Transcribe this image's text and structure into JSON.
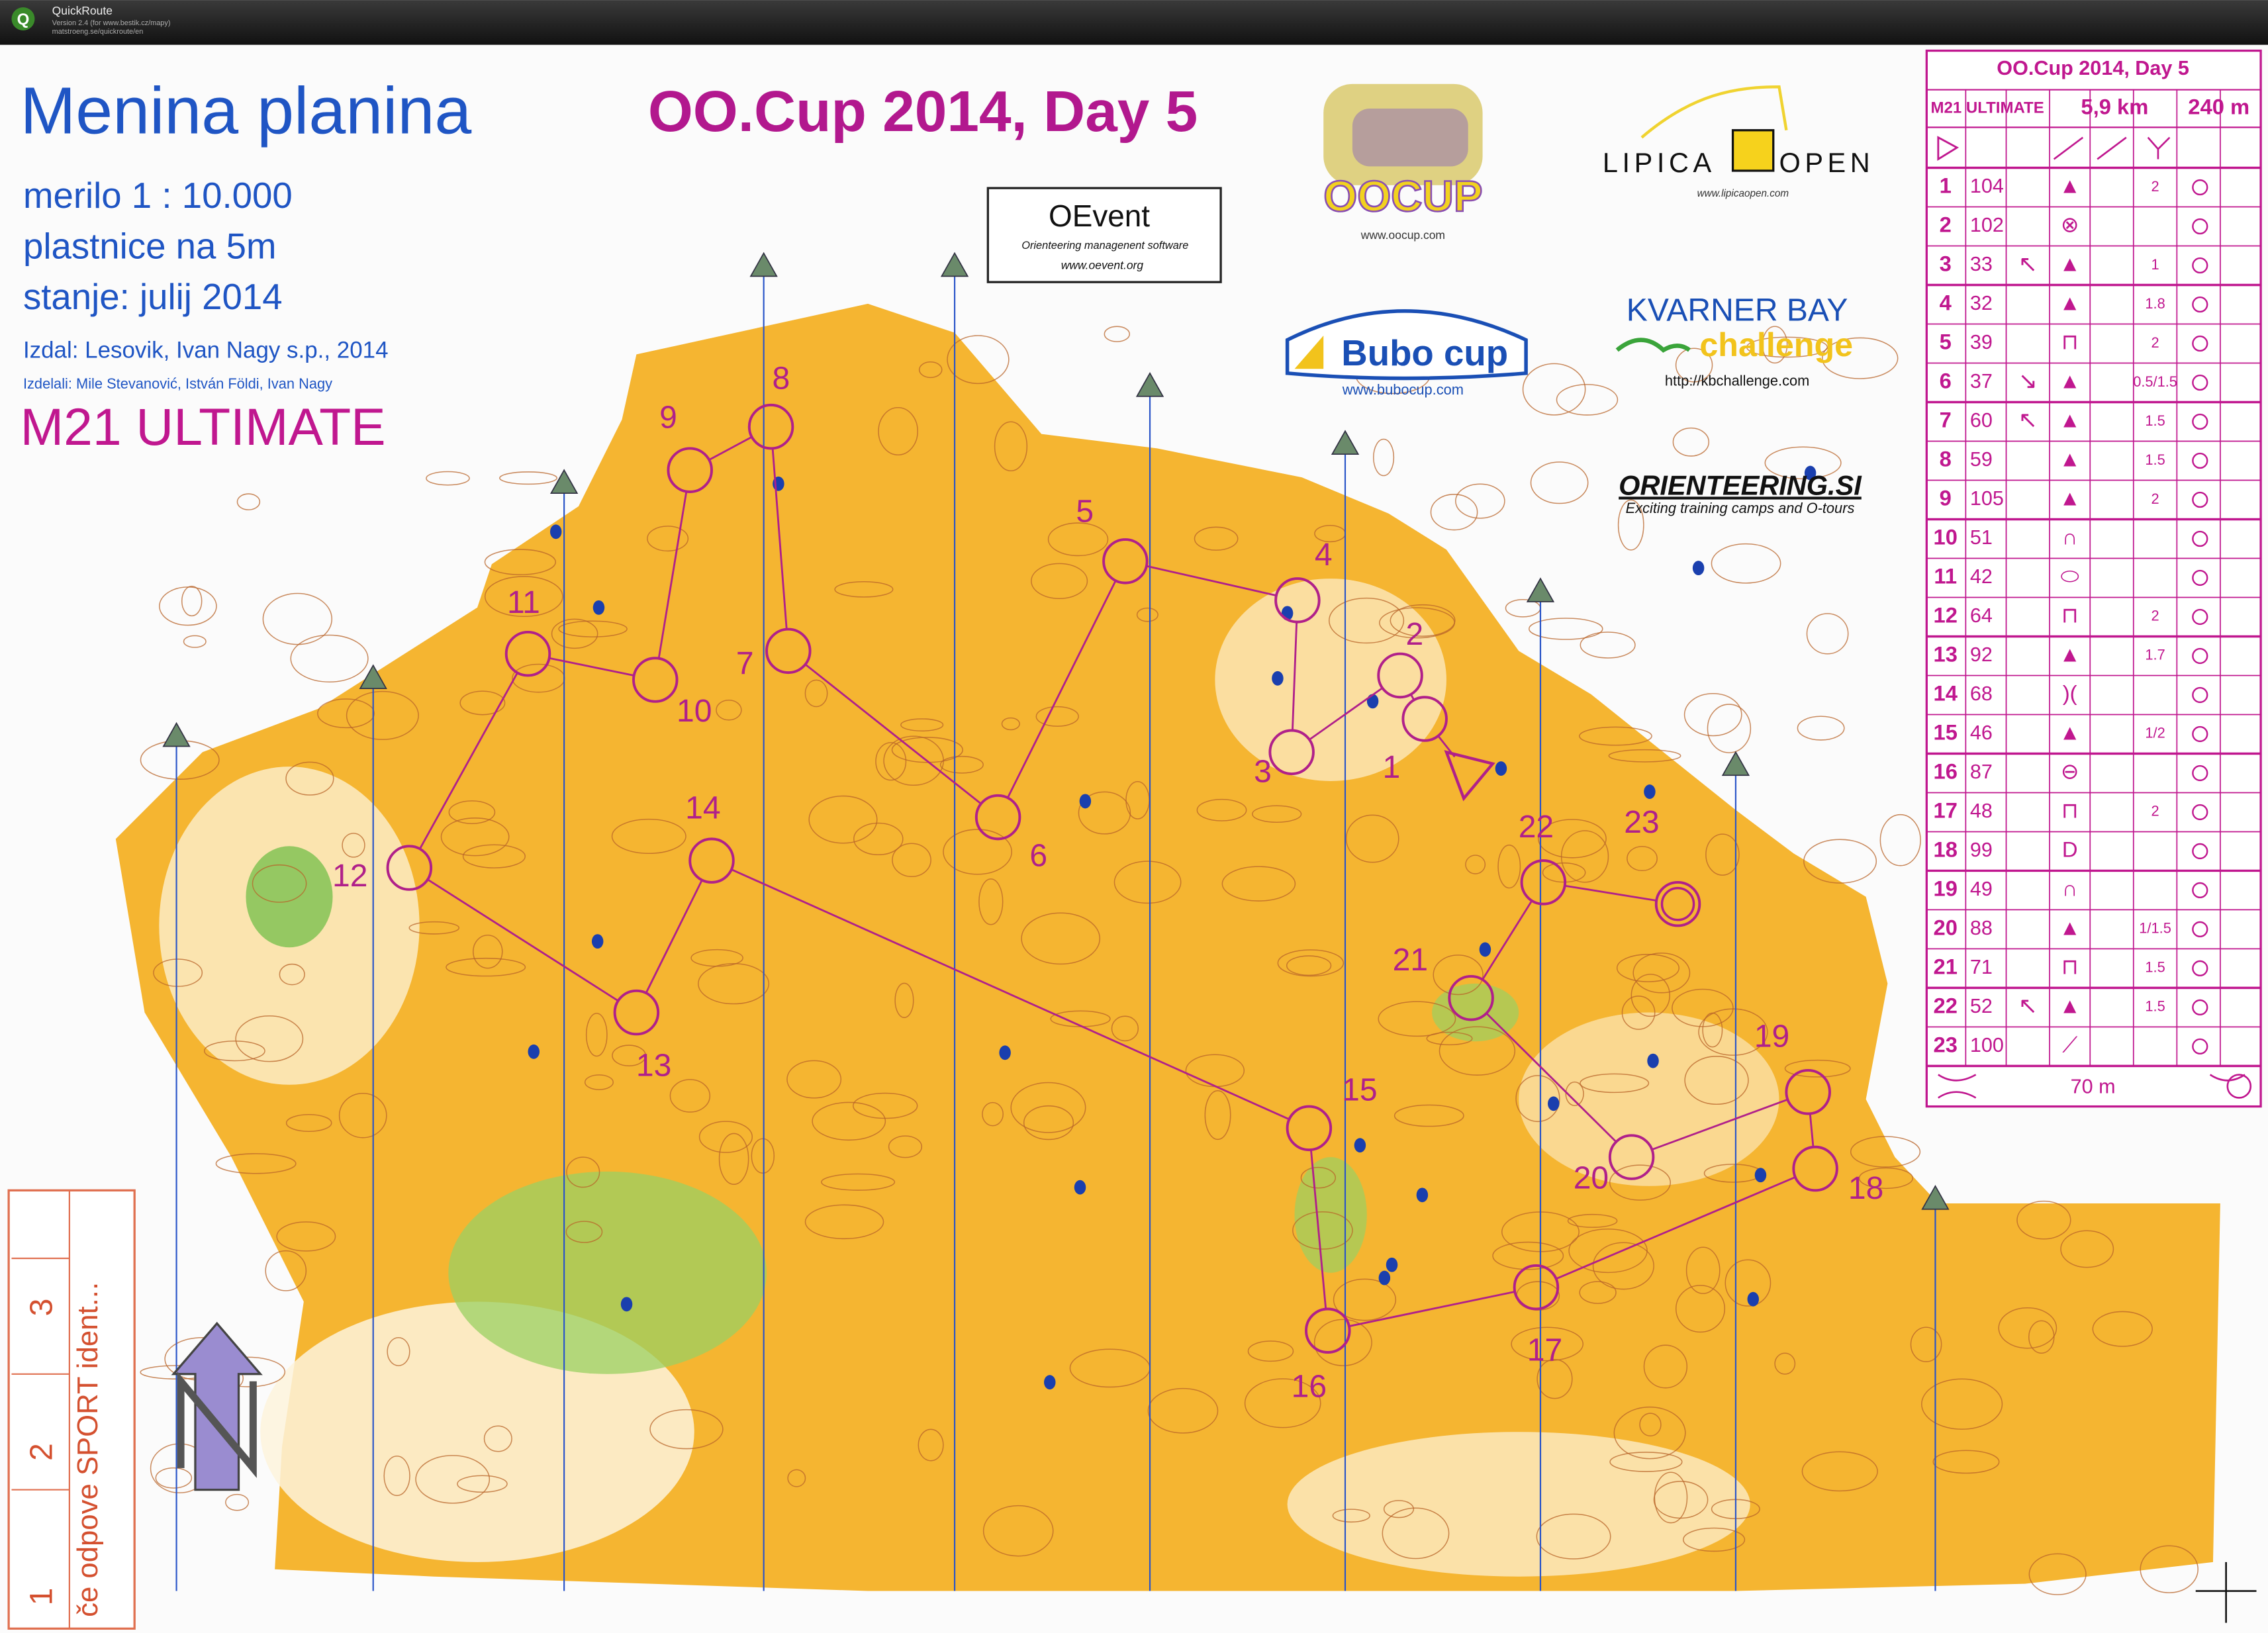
{
  "window": {
    "title": "QuickRoute",
    "version": "Version 2.4  (for www.bestik.cz/mapy)",
    "url": "matstroeng.se/quickroute/en"
  },
  "map": {
    "name": "Menina planina",
    "scale": "merilo 1 : 10.000",
    "contour_interval": "plastnice na 5m",
    "status": "stanje: julij 2014",
    "publisher": "Izdal: Lesovik, Ivan Nagy s.p., 2014",
    "authors": "Izdelali: Mile Stevanović, István Földi, Ivan Nagy",
    "course": "M21 ULTIMATE",
    "event": "OO.Cup 2014, Day 5",
    "controls": [
      1,
      2,
      3,
      4,
      5,
      6,
      7,
      8,
      9,
      10,
      11,
      12,
      13,
      14,
      15,
      16,
      17,
      18,
      19,
      20,
      21,
      22,
      23
    ]
  },
  "logos": {
    "oocup": {
      "name": "OOCUP",
      "url": "www.oocup.com"
    },
    "oevent": {
      "name": "OEvent",
      "tagline": "Orienteering managenent software",
      "url": "www.oevent.org"
    },
    "lipica": {
      "left": "LIPICA",
      "right": "OPEN",
      "url": "www.lipicaopen.com"
    },
    "bubo": {
      "name": "Bubo cup",
      "url": "www.bubocup.com"
    },
    "kvarner": {
      "name": "KVARNER BAY",
      "sub": "challenge",
      "url": "http://kbchallenge.com"
    },
    "orienteering_si": {
      "name": "ORIENTEERING.SI",
      "tagline": "Exciting training camps and O-tours"
    }
  },
  "description_sheet": {
    "event": "OO.Cup 2014, Day 5",
    "course": "M21 ULTIMATE",
    "length": "5,9 km",
    "climb": "240 m",
    "rows": [
      {
        "number": 1,
        "code": 104,
        "feature": "▲",
        "dimension": "2"
      },
      {
        "number": 2,
        "code": 102,
        "feature": "⊗"
      },
      {
        "number": 3,
        "code": 33,
        "direction": "↖",
        "feature": "▲",
        "dimension": "1"
      },
      {
        "number": 4,
        "code": 32,
        "feature": "▲",
        "dimension": "1.8"
      },
      {
        "number": 5,
        "code": 39,
        "feature": "⊓",
        "dimension": "2"
      },
      {
        "number": 6,
        "code": 37,
        "direction": "↘",
        "feature": "▲",
        "dimension": "0.5/1.5"
      },
      {
        "number": 7,
        "code": 60,
        "direction": "↖",
        "feature": "▲",
        "dimension": "1.5"
      },
      {
        "number": 8,
        "code": 59,
        "feature": "▲",
        "dimension": "1.5"
      },
      {
        "number": 9,
        "code": 105,
        "feature": "▲",
        "dimension": "2"
      },
      {
        "number": 10,
        "code": 51,
        "feature": "∩"
      },
      {
        "number": 11,
        "code": 42,
        "feature": "⬭"
      },
      {
        "number": 12,
        "code": 64,
        "feature": "⊓",
        "dimension": "2"
      },
      {
        "number": 13,
        "code": 92,
        "feature": "▲",
        "dimension": "1.7"
      },
      {
        "number": 14,
        "code": 68,
        "feature": ")("
      },
      {
        "number": 15,
        "code": 46,
        "feature": "▲",
        "dimension": "1/2"
      },
      {
        "number": 16,
        "code": 87,
        "feature": "⊖"
      },
      {
        "number": 17,
        "code": 48,
        "feature": "⊓",
        "dimension": "2"
      },
      {
        "number": 18,
        "code": 99,
        "feature": "D"
      },
      {
        "number": 19,
        "code": 49,
        "feature": "∩"
      },
      {
        "number": 20,
        "code": 88,
        "feature": "▲",
        "dimension": "1/1.5"
      },
      {
        "number": 21,
        "code": 71,
        "feature": "⊓",
        "dimension": "1.5"
      },
      {
        "number": 22,
        "code": 52,
        "direction": "↖",
        "feature": "▲",
        "dimension": "1.5"
      },
      {
        "number": 23,
        "code": 100,
        "feature": "⟋"
      }
    ],
    "finish": "70 m"
  },
  "backup_box": {
    "cells": [
      "1",
      "2",
      "3"
    ],
    "note": "če odpove SPORT ident..."
  }
}
